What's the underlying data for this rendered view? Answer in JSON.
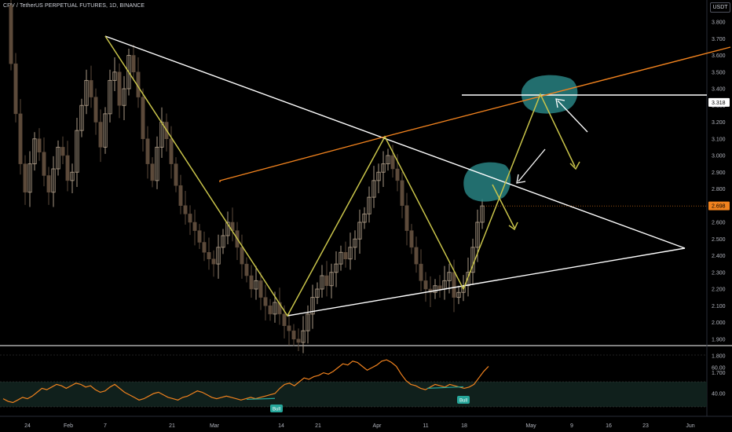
{
  "header": {
    "symbol_line": "CRV / TetherUS PERPETUAL FUTURES, 1D, BINANCE"
  },
  "price_axis": {
    "unit": "USDT"
  },
  "colors": {
    "background": "#000000",
    "candle_up": "#a89783",
    "candle_down": "#5c4a3a",
    "pattern_line": "#c9c44a",
    "trend_line_orange": "#f0821e",
    "trend_line_white": "#ffffff",
    "rsi_line": "#f0821e",
    "circle_fill": "#2a8a8a",
    "current_tag": "#f0821e",
    "level_tag": "#ffffff",
    "bull_label": "#26a69a"
  },
  "chart_data": [
    {
      "type": "candlestick",
      "title": "CRV / TetherUS PERPETUAL FUTURES, 1D, BINANCE",
      "y_unit": "USDT",
      "ylim": [
        1.65,
        3.9
      ],
      "y_ticks": [
        "3.800",
        "3.700",
        "3.600",
        "3.500",
        "3.400",
        "3.300",
        "3.200",
        "3.100",
        "3.000",
        "2.900",
        "2.800",
        "2.700",
        "2.600",
        "2.500",
        "2.400",
        "2.300",
        "2.200",
        "2.100",
        "2.000",
        "1.900",
        "1.800",
        "1.700"
      ],
      "x_ticks": [
        "24",
        "Feb",
        "7",
        "21",
        "Mar",
        "14",
        "21",
        "Apr",
        "11",
        "18",
        "May",
        "9",
        "16",
        "23",
        "Jun"
      ],
      "price_tags": [
        {
          "label": "3.318",
          "value": 3.318,
          "style": "level"
        },
        {
          "label": "2.698",
          "value": 2.698,
          "style": "current"
        }
      ],
      "closes": [
        3.55,
        3.25,
        2.95,
        2.78,
        2.95,
        3.1,
        3.02,
        2.88,
        2.78,
        2.92,
        3.05,
        3.0,
        2.85,
        2.9,
        3.15,
        3.3,
        3.45,
        3.35,
        3.2,
        3.05,
        3.25,
        3.45,
        3.5,
        3.3,
        3.4,
        3.6,
        3.5,
        3.35,
        3.1,
        2.95,
        2.85,
        3.05,
        3.2,
        3.1,
        2.95,
        2.82,
        2.7,
        2.65,
        2.6,
        2.55,
        2.48,
        2.42,
        2.38,
        2.35,
        2.45,
        2.52,
        2.6,
        2.55,
        2.45,
        2.35,
        2.28,
        2.2,
        2.25,
        2.15,
        2.1,
        2.05,
        2.12,
        2.05,
        1.98,
        1.95,
        1.9,
        1.88,
        1.95,
        2.05,
        2.15,
        2.2,
        2.28,
        2.22,
        2.3,
        2.35,
        2.42,
        2.38,
        2.45,
        2.5,
        2.6,
        2.65,
        2.75,
        2.85,
        2.9,
        2.95,
        3.0,
        2.92,
        2.85,
        2.7,
        2.55,
        2.45,
        2.35,
        2.25,
        2.2,
        2.18,
        2.22,
        2.2,
        2.25,
        2.3,
        2.15,
        2.18,
        2.22,
        2.3,
        2.45,
        2.6,
        2.698
      ],
      "rsi": {
        "y_ticks": [
          "60.00",
          "40.00"
        ],
        "ylim": [
          30,
          72
        ],
        "levels": [
          70,
          50,
          30
        ],
        "values": [
          36,
          34,
          33,
          35,
          37,
          36,
          38,
          41,
          44,
          43,
          45,
          47,
          46,
          44,
          46,
          48,
          47,
          45,
          46,
          43,
          41,
          42,
          45,
          47,
          44,
          41,
          39,
          37,
          35,
          36,
          38,
          40,
          41,
          39,
          37,
          36,
          35,
          37,
          38,
          40,
          42,
          41,
          39,
          37,
          36,
          37,
          38,
          37,
          36,
          35,
          36,
          37,
          36,
          37,
          38,
          39,
          40,
          44,
          47,
          48,
          46,
          49,
          52,
          51,
          53,
          54,
          56,
          55,
          57,
          60,
          63,
          62,
          65,
          64,
          61,
          58,
          60,
          62,
          65,
          66,
          64,
          61,
          55,
          50,
          47,
          46,
          44,
          43,
          45,
          47,
          46,
          45,
          47,
          46,
          45,
          44,
          45,
          47,
          52,
          57,
          61
        ],
        "bull_labels": [
          "Bull",
          "Bull"
        ]
      },
      "annotations": [
        "Bull",
        "Bull"
      ]
    }
  ]
}
